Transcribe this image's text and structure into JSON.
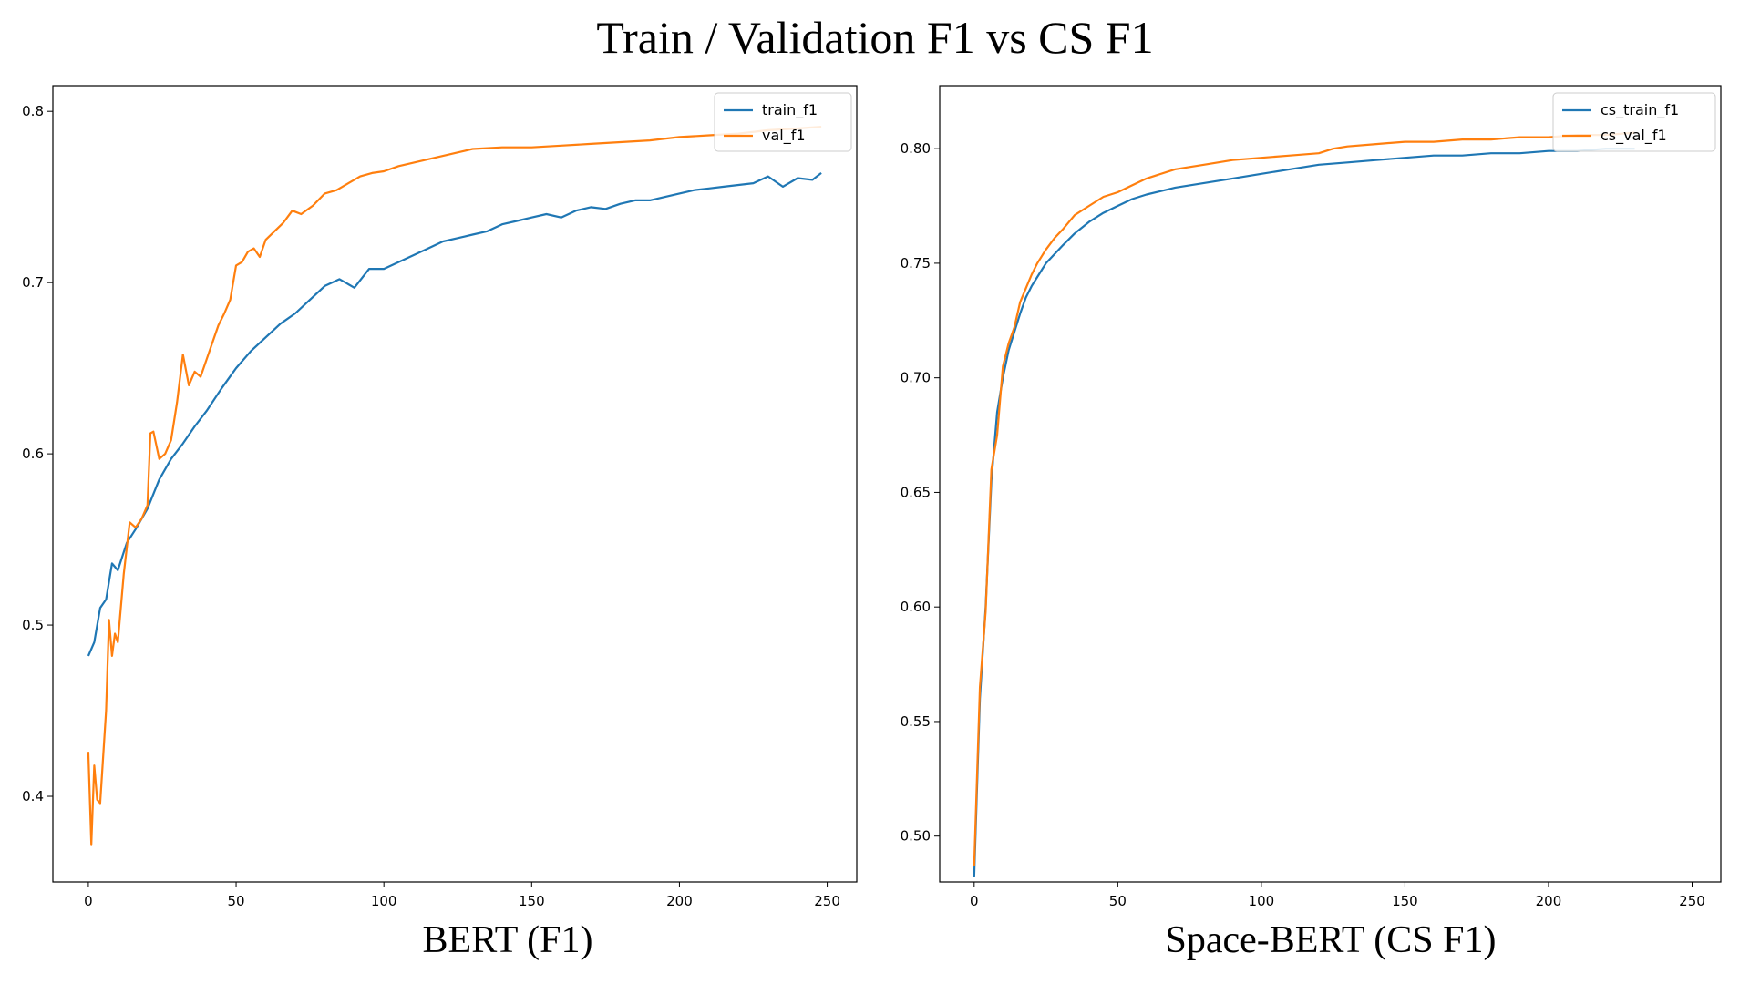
{
  "figure": {
    "title": "Train / Validation F1 vs CS F1"
  },
  "chart_data": [
    {
      "type": "line",
      "caption": "BERT (F1)",
      "xlim": [
        -12,
        260
      ],
      "ylim": [
        0.35,
        0.815
      ],
      "xticks": [
        0,
        50,
        100,
        150,
        200,
        250
      ],
      "yticks": [
        0.4,
        0.5,
        0.6,
        0.7,
        0.8
      ],
      "ytick_labels": [
        "0.4",
        "0.5",
        "0.6",
        "0.7",
        "0.8"
      ],
      "legend_position": "upper-right",
      "grid": false,
      "series": [
        {
          "name": "train_f1",
          "color": "#1f77b4",
          "x": [
            0,
            2,
            4,
            6,
            8,
            10,
            13,
            16,
            20,
            24,
            28,
            32,
            36,
            40,
            45,
            50,
            55,
            60,
            65,
            70,
            75,
            80,
            85,
            90,
            95,
            100,
            105,
            110,
            115,
            120,
            125,
            130,
            135,
            140,
            145,
            150,
            155,
            160,
            165,
            170,
            175,
            180,
            185,
            190,
            195,
            200,
            205,
            210,
            215,
            220,
            225,
            230,
            235,
            240,
            245,
            248
          ],
          "y": [
            0.482,
            0.49,
            0.51,
            0.515,
            0.536,
            0.532,
            0.548,
            0.556,
            0.568,
            0.585,
            0.597,
            0.606,
            0.616,
            0.625,
            0.638,
            0.65,
            0.66,
            0.668,
            0.676,
            0.682,
            0.69,
            0.698,
            0.702,
            0.697,
            0.708,
            0.708,
            0.712,
            0.716,
            0.72,
            0.724,
            0.726,
            0.728,
            0.73,
            0.734,
            0.736,
            0.738,
            0.74,
            0.738,
            0.742,
            0.744,
            0.743,
            0.746,
            0.748,
            0.748,
            0.75,
            0.752,
            0.754,
            0.755,
            0.756,
            0.757,
            0.758,
            0.762,
            0.756,
            0.761,
            0.76,
            0.764
          ]
        },
        {
          "name": "val_f1",
          "color": "#ff7f0e",
          "x": [
            0,
            1,
            2,
            3,
            4,
            6,
            7,
            8,
            9,
            10,
            12,
            14,
            16,
            18,
            20,
            21,
            22,
            24,
            26,
            28,
            30,
            32,
            34,
            36,
            38,
            40,
            42,
            44,
            46,
            48,
            50,
            52,
            54,
            56,
            58,
            60,
            63,
            66,
            69,
            72,
            76,
            80,
            84,
            88,
            92,
            96,
            100,
            105,
            110,
            115,
            120,
            125,
            130,
            140,
            150,
            160,
            170,
            180,
            190,
            200,
            210,
            220,
            230,
            240,
            248
          ],
          "y": [
            0.426,
            0.372,
            0.418,
            0.398,
            0.396,
            0.45,
            0.503,
            0.482,
            0.495,
            0.49,
            0.53,
            0.56,
            0.557,
            0.562,
            0.57,
            0.612,
            0.613,
            0.597,
            0.6,
            0.608,
            0.63,
            0.658,
            0.64,
            0.648,
            0.645,
            0.655,
            0.665,
            0.675,
            0.682,
            0.69,
            0.71,
            0.712,
            0.718,
            0.72,
            0.715,
            0.725,
            0.73,
            0.735,
            0.742,
            0.74,
            0.745,
            0.752,
            0.754,
            0.758,
            0.762,
            0.764,
            0.765,
            0.768,
            0.77,
            0.772,
            0.774,
            0.776,
            0.778,
            0.779,
            0.779,
            0.78,
            0.781,
            0.782,
            0.783,
            0.785,
            0.786,
            0.787,
            0.789,
            0.79,
            0.791
          ]
        }
      ]
    },
    {
      "type": "line",
      "caption": "Space-BERT (CS F1)",
      "xlim": [
        -12,
        260
      ],
      "ylim": [
        0.48,
        0.8275
      ],
      "xticks": [
        0,
        50,
        100,
        150,
        200,
        250
      ],
      "yticks": [
        0.5,
        0.55,
        0.6,
        0.65,
        0.7,
        0.75,
        0.8
      ],
      "ytick_labels": [
        "0.50",
        "0.55",
        "0.60",
        "0.65",
        "0.70",
        "0.75",
        "0.80"
      ],
      "legend_position": "upper-right",
      "grid": false,
      "series": [
        {
          "name": "cs_train_f1",
          "color": "#1f77b4",
          "x": [
            0,
            2,
            4,
            6,
            8,
            10,
            12,
            14,
            16,
            18,
            20,
            22,
            25,
            28,
            31,
            35,
            40,
            45,
            50,
            55,
            60,
            70,
            80,
            90,
            100,
            110,
            120,
            130,
            140,
            150,
            160,
            170,
            180,
            190,
            200,
            210,
            220,
            230
          ],
          "y": [
            0.482,
            0.56,
            0.6,
            0.655,
            0.685,
            0.7,
            0.712,
            0.72,
            0.728,
            0.735,
            0.74,
            0.744,
            0.75,
            0.754,
            0.758,
            0.763,
            0.768,
            0.772,
            0.775,
            0.778,
            0.78,
            0.783,
            0.785,
            0.787,
            0.789,
            0.791,
            0.793,
            0.794,
            0.795,
            0.796,
            0.797,
            0.797,
            0.798,
            0.798,
            0.799,
            0.799,
            0.8,
            0.8
          ]
        },
        {
          "name": "cs_val_f1",
          "color": "#ff7f0e",
          "x": [
            0,
            2,
            4,
            6,
            8,
            10,
            12,
            14,
            16,
            18,
            20,
            22,
            25,
            28,
            31,
            35,
            40,
            45,
            50,
            55,
            60,
            70,
            80,
            90,
            100,
            110,
            120,
            125,
            130,
            140,
            150,
            160,
            170,
            180,
            190,
            200,
            210,
            220,
            230
          ],
          "y": [
            0.487,
            0.565,
            0.598,
            0.66,
            0.675,
            0.705,
            0.715,
            0.722,
            0.733,
            0.739,
            0.745,
            0.75,
            0.756,
            0.761,
            0.765,
            0.771,
            0.775,
            0.779,
            0.781,
            0.784,
            0.787,
            0.791,
            0.793,
            0.795,
            0.796,
            0.797,
            0.798,
            0.8,
            0.801,
            0.802,
            0.803,
            0.803,
            0.804,
            0.804,
            0.805,
            0.805,
            0.806,
            0.806,
            0.807
          ]
        }
      ]
    }
  ]
}
